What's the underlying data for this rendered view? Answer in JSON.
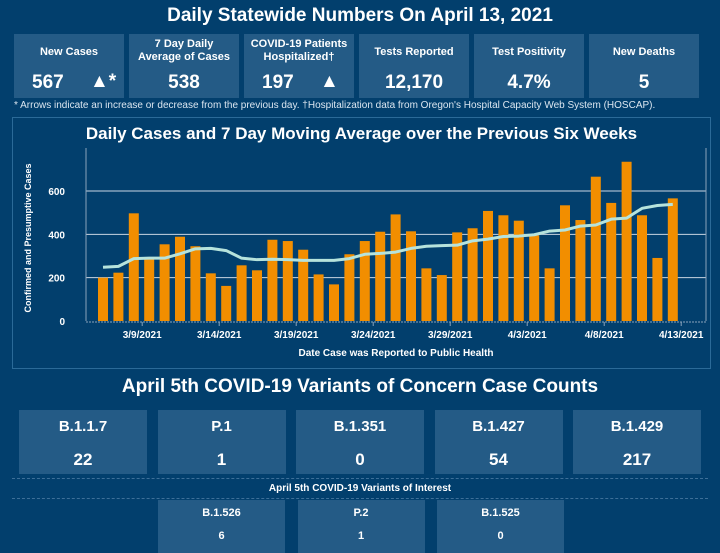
{
  "title": "Daily Statewide Numbers On April 13, 2021",
  "kpis": [
    {
      "label": "New Cases",
      "value": "567",
      "indicator": "▲*"
    },
    {
      "label": "7 Day Daily Average of Cases",
      "value": "538",
      "indicator": ""
    },
    {
      "label": "COVID-19 Patients Hospitalized†",
      "value": "197",
      "indicator": "▲"
    },
    {
      "label": "Tests Reported",
      "value": "12,170",
      "indicator": ""
    },
    {
      "label": "Test Positivity",
      "value": "4.7%",
      "indicator": ""
    },
    {
      "label": "New Deaths",
      "value": "5",
      "indicator": ""
    }
  ],
  "footnote": "* Arrows indicate an increase or decrease from the previous day. †Hospitalization data from Oregon's Hospital Capacity Web System (HOSCAP).",
  "chart_data": {
    "type": "bar",
    "title": "Daily Cases and 7 Day Moving Average over the Previous Six Weeks",
    "xlabel": "Date Case was Reported to Public Health",
    "ylabel": "Confirmed and Presumptive Cases",
    "ylim": [
      0,
      760
    ],
    "yticks": [
      0,
      200,
      400,
      600
    ],
    "grid": true,
    "xtick_labels": [
      "3/9/2021",
      "3/14/2021",
      "3/19/2021",
      "3/24/2021",
      "3/29/2021",
      "4/3/2021",
      "4/8/2021",
      "4/13/2021"
    ],
    "series": [
      {
        "type": "bar",
        "color": "#f28e00",
        "values": [
          200,
          223,
          497,
          295,
          354,
          389,
          345,
          220,
          162,
          257,
          234,
          375,
          369,
          329,
          215,
          169,
          308,
          369,
          412,
          492,
          414,
          243,
          212,
          409,
          428,
          508,
          488,
          463,
          395,
          243,
          534,
          466,
          666,
          545,
          735,
          488,
          291,
          566
        ]
      },
      {
        "type": "line",
        "color": "#b6e3dc",
        "values": [
          248,
          252,
          288,
          290,
          290,
          310,
          333,
          335,
          325,
          290,
          283,
          285,
          283,
          280,
          280,
          280,
          288,
          308,
          312,
          318,
          335,
          345,
          348,
          350,
          370,
          378,
          390,
          392,
          398,
          415,
          420,
          438,
          443,
          470,
          475,
          520,
          533,
          538
        ]
      }
    ]
  },
  "variants": {
    "title": "April 5th  COVID-19 Variants of Concern Case Counts",
    "concern": [
      {
        "name": "B.1.1.7",
        "count": "22"
      },
      {
        "name": "P.1",
        "count": "1"
      },
      {
        "name": "B.1.351",
        "count": "0"
      },
      {
        "name": "B.1.427",
        "count": "54"
      },
      {
        "name": "B.1.429",
        "count": "217"
      }
    ],
    "interest_title": "April 5th COVID-19 Variants of Interest",
    "interest": [
      {
        "name": "B.1.526",
        "count": "6"
      },
      {
        "name": "P.2",
        "count": "1"
      },
      {
        "name": "B.1.525",
        "count": "0"
      }
    ]
  }
}
